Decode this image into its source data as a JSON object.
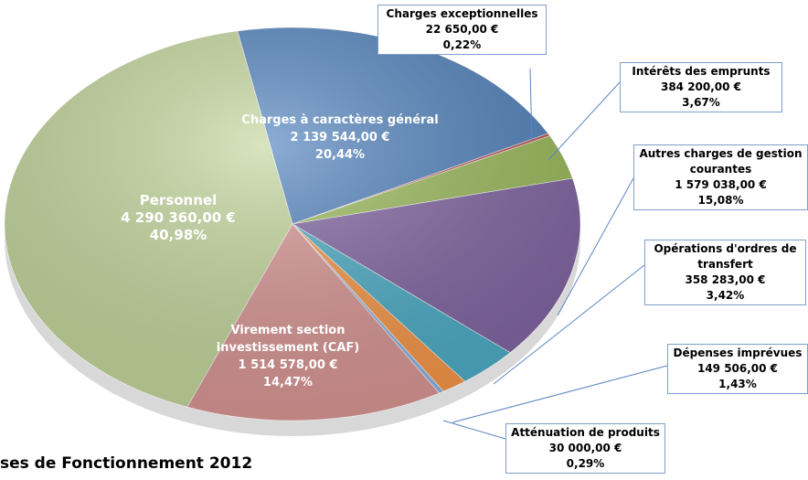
{
  "chart_data": {
    "type": "pie",
    "title": "ses de Fonctionnement 2012",
    "categories": [
      "Charges à caractères général",
      "Charges exceptionnelles",
      "Intérêts des emprunts",
      "Autres charges de gestion courantes",
      "Opérations d'ordres de transfert",
      "Dépenses imprévues",
      "Atténuation de produits",
      "Virement section investissement (CAF)",
      "Personnel"
    ],
    "values": [
      2139544,
      22650,
      384200,
      1579038,
      358283,
      149506,
      30000,
      1514578,
      4290360
    ],
    "value_labels": [
      "2 139 544,00 €",
      "22 650,00 €",
      "384 200,00 €",
      "1 579 038,00 €",
      "358 283,00 €",
      "149 506,00 €",
      "30 000,00 €",
      "1 514 578,00 €",
      "4 290 360,00 €"
    ],
    "percentages": [
      20.44,
      0.22,
      3.67,
      15.08,
      3.42,
      1.43,
      0.29,
      14.47,
      40.98
    ],
    "percentage_labels": [
      "20,44%",
      "0,22%",
      "3,67%",
      "15,08%",
      "3,42%",
      "1,43%",
      "0,29%",
      "14,47%",
      "40,98%"
    ],
    "colors": [
      "#4f81bd",
      "#c0504d",
      "#9bbb59",
      "#8064a2",
      "#4bacc6",
      "#f79646",
      "#8db3e2",
      "#d99694",
      "#c3d69b"
    ]
  }
}
